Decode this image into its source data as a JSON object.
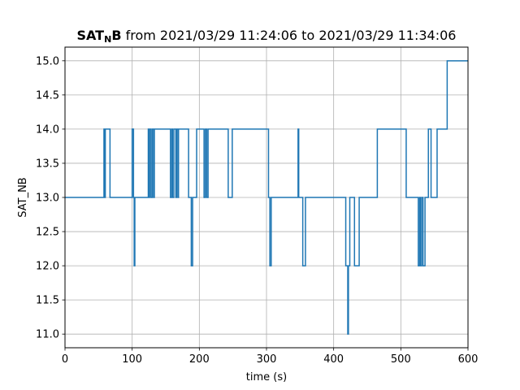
{
  "chart_data": {
    "type": "line",
    "title": {
      "bold_main": "SAT",
      "bold_sub": "N",
      "bold_after": "B",
      "rest": " from 2021/03/29 11:24:06 to 2021/03/29 11:34:06"
    },
    "xlabel": "time (s)",
    "ylabel": "SAT_NB",
    "xlim": [
      0,
      600
    ],
    "ylim": [
      10.8,
      15.2
    ],
    "xticks": [
      0,
      100,
      200,
      300,
      400,
      500,
      600
    ],
    "xtick_labels": [
      "0",
      "100",
      "200",
      "300",
      "400",
      "500",
      "600"
    ],
    "yticks": [
      11.0,
      11.5,
      12.0,
      12.5,
      13.0,
      13.5,
      14.0,
      14.5,
      15.0
    ],
    "ytick_labels": [
      "11.0",
      "11.5",
      "12.0",
      "12.5",
      "13.0",
      "13.5",
      "14.0",
      "14.5",
      "15.0"
    ],
    "grid": true,
    "step": true,
    "color": "#1f77b4",
    "series": [
      {
        "x": [
          0,
          58,
          59,
          60,
          67,
          100,
          102,
          103,
          104,
          123,
          124,
          125,
          126,
          128,
          130,
          132,
          133,
          135,
          157,
          159,
          160,
          162,
          165,
          166,
          168,
          169,
          184,
          188,
          190,
          196,
          207,
          209,
          211,
          213,
          243,
          249,
          284,
          303,
          305,
          307,
          309,
          347,
          348,
          349,
          354,
          358,
          418,
          421,
          422,
          424,
          427,
          431,
          438,
          465,
          508,
          526,
          528,
          529,
          531,
          533,
          536,
          541,
          545,
          554,
          569,
          600
        ],
        "y": [
          13,
          14,
          13,
          14,
          13,
          14,
          13,
          12,
          13,
          13,
          14,
          13,
          14,
          13,
          14,
          13,
          14,
          14,
          13,
          14,
          13,
          14,
          13,
          14,
          13,
          14,
          13,
          12,
          13,
          14,
          13,
          14,
          13,
          14,
          13,
          14,
          14,
          13,
          12,
          13,
          13,
          14,
          13,
          13,
          12,
          13,
          12,
          11,
          12,
          13,
          13,
          12,
          13,
          14,
          13,
          12,
          13,
          12,
          13,
          12,
          13,
          14,
          13,
          14,
          15,
          15
        ]
      }
    ]
  }
}
